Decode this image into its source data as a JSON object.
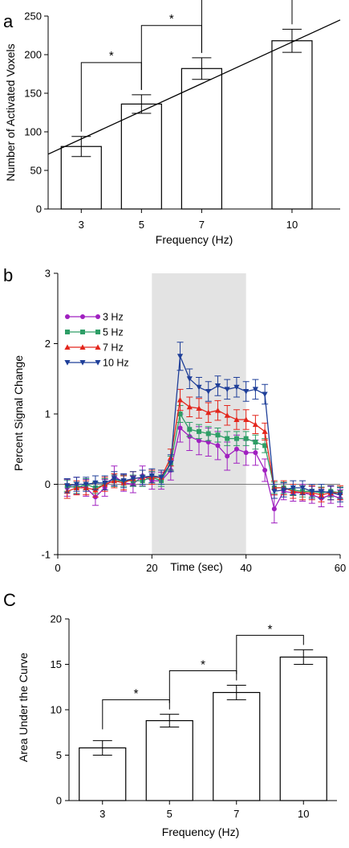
{
  "chart_data": [
    {
      "panel": "a",
      "type": "bar",
      "categories": [
        "3",
        "5",
        "7",
        "10"
      ],
      "x": [
        3,
        5,
        7,
        10
      ],
      "values": [
        81,
        136,
        182,
        218
      ],
      "errors": [
        13,
        12,
        14,
        15
      ],
      "xlabel": "Frequency (Hz)",
      "ylabel": "Number of Activated Voxels",
      "xlim": [
        1.9,
        11.6
      ],
      "ylim": [
        0,
        250
      ],
      "yticks": [
        0,
        50,
        100,
        150,
        200,
        250
      ],
      "xticks": [
        "3",
        "5",
        "7",
        "10"
      ],
      "fit_line": {
        "x": [
          1.9,
          11.6
        ],
        "y": [
          71,
          245
        ]
      },
      "significance": [
        {
          "from": 0,
          "to": 1,
          "label": "*"
        },
        {
          "from": 1,
          "to": 2,
          "label": "*"
        },
        {
          "from": 2,
          "to": 3,
          "label": "*"
        }
      ],
      "grid": false
    },
    {
      "panel": "b",
      "type": "line",
      "xlabel": "Time (sec)",
      "ylabel": "Percent Signal Change",
      "xlim": [
        0,
        60
      ],
      "ylim": [
        -1,
        3
      ],
      "xticks": [
        0,
        20,
        40,
        60
      ],
      "yticks": [
        -1,
        0,
        1,
        2,
        3
      ],
      "shaded_region": [
        20,
        40
      ],
      "zero_line": 0,
      "legend_position": "upper-left",
      "x": [
        2,
        4,
        6,
        8,
        10,
        12,
        14,
        16,
        18,
        20,
        22,
        24,
        26,
        28,
        30,
        32,
        34,
        36,
        38,
        40,
        42,
        44,
        46,
        48,
        50,
        52,
        54,
        56,
        58,
        60
      ],
      "series": [
        {
          "name": "3 Hz",
          "color": "#a020c0",
          "marker": "circle",
          "values": [
            -0.05,
            -0.02,
            -0.05,
            -0.18,
            -0.05,
            0.12,
            0.02,
            0.0,
            0.12,
            0.05,
            0.05,
            0.2,
            0.8,
            0.68,
            0.62,
            0.6,
            0.55,
            0.4,
            0.5,
            0.45,
            0.45,
            0.2,
            -0.35,
            -0.1,
            -0.12,
            -0.12,
            -0.15,
            -0.2,
            -0.15,
            -0.2
          ],
          "errors": [
            0.12,
            0.12,
            0.12,
            0.12,
            0.12,
            0.14,
            0.12,
            0.12,
            0.14,
            0.12,
            0.12,
            0.14,
            0.2,
            0.2,
            0.2,
            0.2,
            0.2,
            0.2,
            0.2,
            0.18,
            0.18,
            0.16,
            0.2,
            0.12,
            0.12,
            0.12,
            0.12,
            0.12,
            0.12,
            0.12
          ]
        },
        {
          "name": "5 Hz",
          "color": "#2e9e66",
          "marker": "square",
          "values": [
            -0.02,
            -0.05,
            0.0,
            -0.05,
            0.0,
            0.05,
            0.05,
            0.05,
            0.05,
            0.1,
            0.05,
            0.3,
            1.0,
            0.78,
            0.75,
            0.72,
            0.7,
            0.65,
            0.65,
            0.65,
            0.6,
            0.55,
            -0.05,
            -0.05,
            -0.08,
            -0.1,
            -0.1,
            -0.12,
            -0.1,
            -0.12
          ],
          "errors": [
            0.08,
            0.08,
            0.08,
            0.08,
            0.08,
            0.08,
            0.08,
            0.08,
            0.08,
            0.08,
            0.08,
            0.1,
            0.12,
            0.1,
            0.1,
            0.1,
            0.1,
            0.1,
            0.1,
            0.1,
            0.1,
            0.1,
            0.08,
            0.08,
            0.08,
            0.08,
            0.08,
            0.08,
            0.08,
            0.08
          ]
        },
        {
          "name": "7 Hz",
          "color": "#e3261c",
          "marker": "triangle-up",
          "values": [
            -0.1,
            -0.05,
            -0.05,
            -0.08,
            0.0,
            0.05,
            0.02,
            0.08,
            0.1,
            0.1,
            0.1,
            0.38,
            1.2,
            1.1,
            1.08,
            1.02,
            1.05,
            0.98,
            0.92,
            0.92,
            0.85,
            0.75,
            -0.05,
            -0.05,
            -0.1,
            -0.12,
            -0.12,
            -0.15,
            -0.12,
            -0.12
          ],
          "errors": [
            0.1,
            0.1,
            0.1,
            0.1,
            0.1,
            0.1,
            0.1,
            0.1,
            0.1,
            0.1,
            0.1,
            0.12,
            0.15,
            0.14,
            0.14,
            0.14,
            0.14,
            0.14,
            0.14,
            0.14,
            0.13,
            0.12,
            0.1,
            0.1,
            0.1,
            0.1,
            0.1,
            0.1,
            0.1,
            0.1
          ]
        },
        {
          "name": "10 Hz",
          "color": "#1f3f99",
          "marker": "triangle-down",
          "values": [
            -0.02,
            0.0,
            0.0,
            0.02,
            0.02,
            0.08,
            0.05,
            0.08,
            0.1,
            0.12,
            0.1,
            0.3,
            1.82,
            1.5,
            1.38,
            1.32,
            1.4,
            1.35,
            1.38,
            1.32,
            1.35,
            1.28,
            -0.1,
            -0.08,
            -0.05,
            -0.05,
            -0.1,
            -0.1,
            -0.12,
            -0.15
          ],
          "errors": [
            0.1,
            0.1,
            0.1,
            0.1,
            0.1,
            0.1,
            0.1,
            0.1,
            0.1,
            0.1,
            0.1,
            0.12,
            0.2,
            0.14,
            0.14,
            0.14,
            0.14,
            0.14,
            0.14,
            0.14,
            0.14,
            0.14,
            0.1,
            0.1,
            0.1,
            0.1,
            0.1,
            0.1,
            0.1,
            0.1
          ]
        }
      ],
      "grid": false
    },
    {
      "panel": "C",
      "type": "bar",
      "categories": [
        "3",
        "5",
        "7",
        "10"
      ],
      "values": [
        5.8,
        8.8,
        11.9,
        15.8
      ],
      "errors": [
        0.8,
        0.7,
        0.8,
        0.8
      ],
      "xlabel": "Frequency (Hz)",
      "ylabel": "Area Under the Curve",
      "ylim": [
        0,
        20
      ],
      "yticks": [
        0,
        5,
        10,
        15,
        20
      ],
      "xticks": [
        "3",
        "5",
        "7",
        "10"
      ],
      "significance": [
        {
          "from": 0,
          "to": 1,
          "label": "*"
        },
        {
          "from": 1,
          "to": 2,
          "label": "*"
        },
        {
          "from": 2,
          "to": 3,
          "label": "*"
        }
      ],
      "grid": false
    }
  ]
}
